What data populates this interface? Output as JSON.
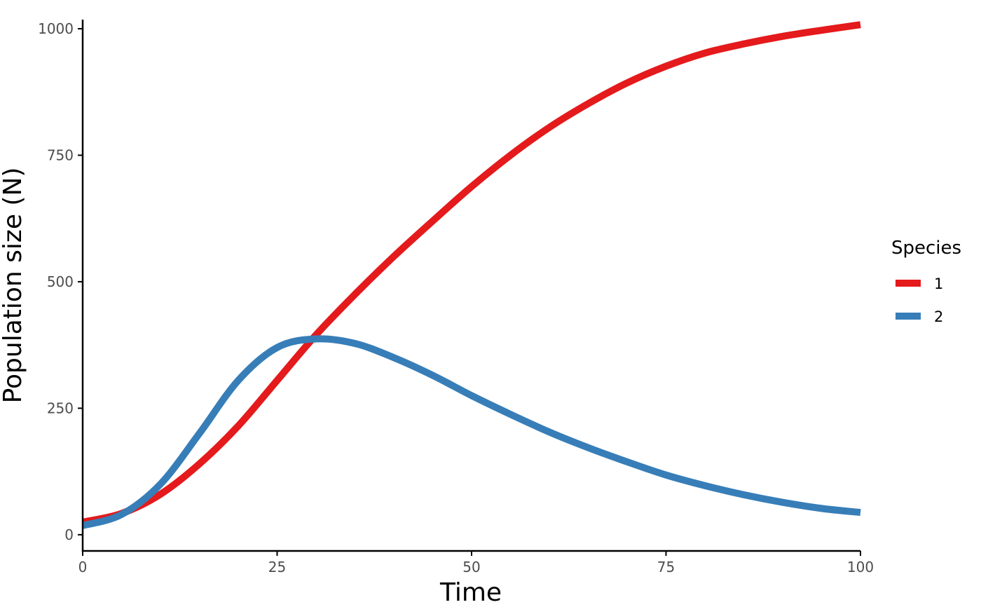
{
  "chart_data": {
    "type": "line",
    "title": "",
    "xlabel": "Time",
    "ylabel": "Population size (N)",
    "xlim": [
      0,
      100
    ],
    "ylim": [
      -32,
      1018
    ],
    "x_ticks": [
      0,
      25,
      50,
      75,
      100
    ],
    "y_ticks": [
      0,
      250,
      500,
      750,
      1000
    ],
    "x_tick_labels": [
      "0",
      "25",
      "50",
      "75",
      "100"
    ],
    "y_tick_labels": [
      "0",
      "250",
      "500",
      "750",
      "1000"
    ],
    "grid": false,
    "legend": {
      "title": "Species",
      "placement": "right"
    },
    "x": [
      0,
      5,
      10,
      15,
      20,
      25,
      30,
      35,
      40,
      45,
      50,
      55,
      60,
      65,
      70,
      75,
      80,
      85,
      90,
      95,
      100
    ],
    "series": [
      {
        "name": "1",
        "color": "#e41a1c",
        "values": [
          25,
          42,
          80,
          140,
          215,
          305,
          395,
          475,
          550,
          620,
          688,
          750,
          805,
          852,
          893,
          926,
          952,
          970,
          985,
          997,
          1008
        ]
      },
      {
        "name": "2",
        "color": "#377eb8",
        "values": [
          18,
          40,
          100,
          200,
          305,
          370,
          387,
          378,
          350,
          315,
          275,
          238,
          203,
          172,
          144,
          118,
          97,
          79,
          64,
          52,
          44
        ]
      }
    ]
  }
}
